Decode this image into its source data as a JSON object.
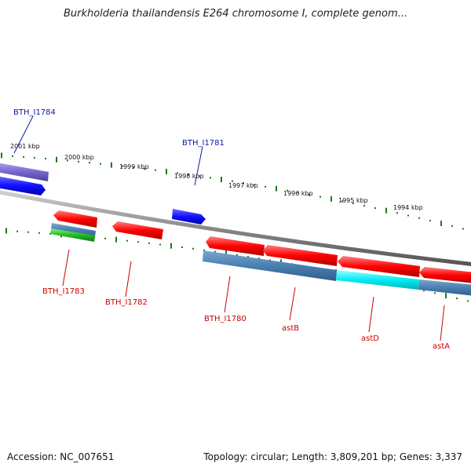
{
  "title": "Burkholderia thailandensis E264 chromosome I, complete genom...",
  "footer": {
    "accession": "Accession: NC_007651",
    "summary": "Topology: circular; Length: 3,809,201 bp; Genes: 3,337"
  },
  "scale_labels": [
    "2001 kbp",
    "2000 kbp",
    "1999 kbp",
    "1998 kbp",
    "1997 kbp",
    "1996 kbp",
    "1995 kbp",
    "1994 kbp"
  ],
  "gene_labels": {
    "bth_i1784": "BTH_I1784",
    "bth_i1781": "BTH_I1781",
    "bth_i1783": "BTH_I1783",
    "bth_i1782": "BTH_I1782",
    "bth_i1780": "BTH_I1780",
    "astB": "astB",
    "astD": "astD",
    "astA": "astA"
  },
  "colors": {
    "forward_cds": "#1a1aff",
    "reverse_cds": "#ff1010",
    "steelblue_cds": "#4a7fb0",
    "cyan_cds": "#00e8ee",
    "green_cds": "#22bb22",
    "purple_cds": "#7766cc",
    "backbone": "#888888",
    "tick": "#1a7a1a",
    "forward_label": "#0a1aa0",
    "reverse_label": "#cc0000"
  }
}
